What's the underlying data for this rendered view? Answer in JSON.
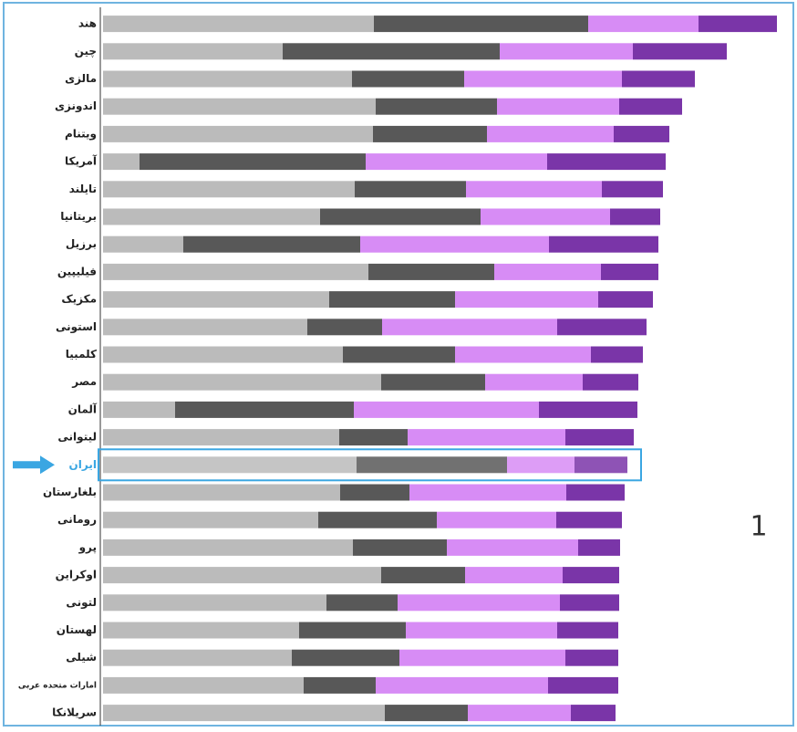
{
  "chart_data": {
    "type": "stacked-bar-horizontal",
    "categories": [
      "هند",
      "چین",
      "مالزی",
      "اندونزی",
      "ویتنام",
      "آمریکا",
      "تایلند",
      "بریتانیا",
      "برزیل",
      "فیلیپین",
      "مکزیک",
      "استونی",
      "کلمبیا",
      "مصر",
      "آلمان",
      "لیتوانی",
      "ایران",
      "بلغارستان",
      "رومانی",
      "پرو",
      "اوکراین",
      "لتونی",
      "لهستان",
      "شیلی",
      "امارات متحده عربی",
      "سریلانکا"
    ],
    "series": [
      {
        "color": "#bbbbbb",
        "values": [
          297,
          197,
          273,
          299,
          296,
          40,
          276,
          238,
          88,
          291,
          248,
          224,
          263,
          305,
          79,
          259,
          278,
          260,
          236,
          274,
          305,
          245,
          215,
          207,
          220,
          309
        ]
      },
      {
        "color": "#585858",
        "values": [
          235,
          238,
          123,
          133,
          125,
          248,
          122,
          176,
          194,
          138,
          138,
          82,
          123,
          114,
          196,
          75,
          165,
          76,
          130,
          103,
          92,
          78,
          117,
          118,
          79,
          91
        ]
      },
      {
        "color": "#d78cf5",
        "values": [
          121,
          146,
          173,
          134,
          139,
          199,
          149,
          142,
          207,
          117,
          157,
          192,
          149,
          107,
          203,
          173,
          74,
          172,
          131,
          144,
          107,
          178,
          166,
          182,
          189,
          113
        ]
      },
      {
        "color": "#7a35a8",
        "values": [
          86,
          103,
          80,
          69,
          61,
          130,
          67,
          55,
          120,
          63,
          60,
          98,
          57,
          61,
          108,
          75,
          58,
          64,
          72,
          46,
          62,
          65,
          67,
          58,
          77,
          49
        ]
      }
    ],
    "xlim": [
      0,
      760
    ],
    "highlighted_category": "ایران",
    "highlight_color": "#3aa6e2",
    "annotation": "1"
  }
}
